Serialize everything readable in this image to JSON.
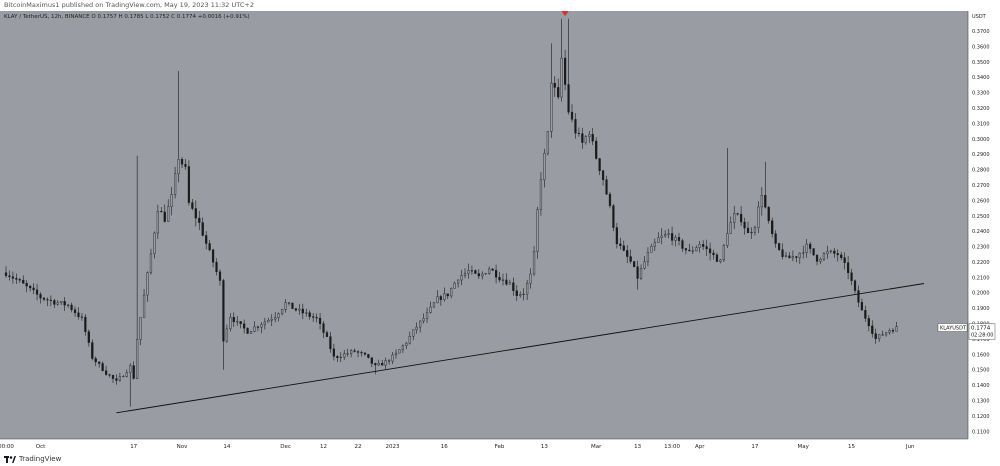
{
  "header": {
    "published": "BitcoinMaximus1 published on TradingView.com, May 19, 2023 11:32 UTC+2"
  },
  "legend": {
    "text": "KLAY / TetherUS, 12h, BINANCE  O 0.1757  H 0.1785  L 0.1752  C 0.1774  +0.0016 (+0.91%)"
  },
  "footer": {
    "brand": "TradingView"
  },
  "colors": {
    "background": "#9a9ca3",
    "candle": "#1a1a1a",
    "trendline": "#111111",
    "marker": "#d32f2f",
    "price_label_bg": "#ffffff"
  },
  "chart_data": {
    "type": "candlestick",
    "symbol": "KLAYUSDT",
    "timeframe": "12h",
    "exchange": "BINANCE",
    "ylabel": "USDT",
    "ylim": [
      0.105,
      0.383
    ],
    "y_ticks": [
      "0.1100",
      "0.1200",
      "0.1300",
      "0.1400",
      "0.1500",
      "0.1600",
      "0.1700",
      "0.1800",
      "0.1900",
      "0.2000",
      "0.2100",
      "0.2200",
      "0.2300",
      "0.2400",
      "0.2500",
      "0.2600",
      "0.2700",
      "0.2800",
      "0.2900",
      "0.3000",
      "0.3100",
      "0.3200",
      "0.3300",
      "0.3400",
      "0.3500",
      "0.3600",
      "0.3700"
    ],
    "x_ticks": [
      {
        "label": "00:00",
        "t": 0
      },
      {
        "label": "Oct",
        "t": 10
      },
      {
        "label": "17",
        "t": 37
      },
      {
        "label": "Nov",
        "t": 51
      },
      {
        "label": "14",
        "t": 64
      },
      {
        "label": "Dec",
        "t": 81
      },
      {
        "label": "12",
        "t": 92
      },
      {
        "label": "22",
        "t": 102
      },
      {
        "label": "2023",
        "t": 112
      },
      {
        "label": "16",
        "t": 127
      },
      {
        "label": "Feb",
        "t": 143
      },
      {
        "label": "13",
        "t": 156
      },
      {
        "label": "Mar",
        "t": 171
      },
      {
        "label": "13",
        "t": 183
      },
      {
        "label": "13:00",
        "t": 193
      },
      {
        "label": "Apr",
        "t": 201
      },
      {
        "label": "17",
        "t": 217
      },
      {
        "label": "May",
        "t": 231
      },
      {
        "label": "15",
        "t": 245
      },
      {
        "label": "Jun",
        "t": 262
      }
    ],
    "t_max": 277,
    "price_path": [
      [
        0,
        0.213
      ],
      [
        4,
        0.207
      ],
      [
        10,
        0.197
      ],
      [
        14,
        0.194
      ],
      [
        18,
        0.192
      ],
      [
        22,
        0.183
      ],
      [
        25,
        0.158
      ],
      [
        29,
        0.148
      ],
      [
        32,
        0.142
      ],
      [
        34,
        0.147
      ],
      [
        36,
        0.152
      ],
      [
        37,
        0.145
      ],
      [
        38,
        0.17
      ],
      [
        40,
        0.198
      ],
      [
        42,
        0.225
      ],
      [
        44,
        0.255
      ],
      [
        46,
        0.248
      ],
      [
        48,
        0.262
      ],
      [
        50,
        0.288
      ],
      [
        52,
        0.28
      ],
      [
        53,
        0.258
      ],
      [
        56,
        0.245
      ],
      [
        58,
        0.232
      ],
      [
        60,
        0.22
      ],
      [
        62,
        0.207
      ],
      [
        63,
        0.17
      ],
      [
        65,
        0.185
      ],
      [
        67,
        0.18
      ],
      [
        70,
        0.175
      ],
      [
        74,
        0.18
      ],
      [
        78,
        0.185
      ],
      [
        81,
        0.193
      ],
      [
        84,
        0.189
      ],
      [
        87,
        0.186
      ],
      [
        90,
        0.183
      ],
      [
        93,
        0.17
      ],
      [
        95,
        0.158
      ],
      [
        98,
        0.16
      ],
      [
        101,
        0.162
      ],
      [
        104,
        0.159
      ],
      [
        107,
        0.152
      ],
      [
        110,
        0.155
      ],
      [
        113,
        0.16
      ],
      [
        116,
        0.168
      ],
      [
        119,
        0.178
      ],
      [
        122,
        0.186
      ],
      [
        125,
        0.196
      ],
      [
        128,
        0.199
      ],
      [
        131,
        0.21
      ],
      [
        134,
        0.214
      ],
      [
        137,
        0.21
      ],
      [
        140,
        0.216
      ],
      [
        143,
        0.21
      ],
      [
        146,
        0.206
      ],
      [
        148,
        0.199
      ],
      [
        150,
        0.2
      ],
      [
        152,
        0.211
      ],
      [
        153,
        0.225
      ],
      [
        154,
        0.253
      ],
      [
        155,
        0.275
      ],
      [
        157,
        0.303
      ],
      [
        158,
        0.338
      ],
      [
        160,
        0.325
      ],
      [
        161,
        0.352
      ],
      [
        163,
        0.318
      ],
      [
        165,
        0.305
      ],
      [
        167,
        0.297
      ],
      [
        169,
        0.305
      ],
      [
        171,
        0.288
      ],
      [
        173,
        0.274
      ],
      [
        175,
        0.255
      ],
      [
        177,
        0.233
      ],
      [
        179,
        0.226
      ],
      [
        181,
        0.22
      ],
      [
        183,
        0.21
      ],
      [
        186,
        0.225
      ],
      [
        189,
        0.235
      ],
      [
        192,
        0.238
      ],
      [
        195,
        0.232
      ],
      [
        198,
        0.226
      ],
      [
        201,
        0.232
      ],
      [
        204,
        0.226
      ],
      [
        207,
        0.22
      ],
      [
        209,
        0.24
      ],
      [
        211,
        0.25
      ],
      [
        213,
        0.248
      ],
      [
        215,
        0.238
      ],
      [
        217,
        0.244
      ],
      [
        219,
        0.265
      ],
      [
        221,
        0.245
      ],
      [
        223,
        0.23
      ],
      [
        226,
        0.222
      ],
      [
        229,
        0.224
      ],
      [
        232,
        0.23
      ],
      [
        235,
        0.222
      ],
      [
        238,
        0.226
      ],
      [
        241,
        0.225
      ],
      [
        244,
        0.214
      ],
      [
        246,
        0.2
      ],
      [
        248,
        0.188
      ],
      [
        250,
        0.18
      ],
      [
        252,
        0.17
      ],
      [
        254,
        0.173
      ],
      [
        256,
        0.176
      ],
      [
        258,
        0.177
      ]
    ],
    "wick_spikes": [
      {
        "t": 38,
        "h": 0.289
      },
      {
        "t": 50,
        "h": 0.344
      },
      {
        "t": 158,
        "h": 0.362
      },
      {
        "t": 161,
        "h": 0.378
      },
      {
        "t": 163,
        "h": 0.378
      },
      {
        "t": 209,
        "h": 0.294
      },
      {
        "t": 220,
        "h": 0.285
      },
      {
        "t": 36,
        "l": 0.126
      },
      {
        "t": 63,
        "l": 0.15
      },
      {
        "t": 107,
        "l": 0.147
      },
      {
        "t": 183,
        "l": 0.202
      },
      {
        "t": 253,
        "l": 0.168
      }
    ],
    "trendline": [
      {
        "t": 32,
        "y": 0.122
      },
      {
        "t": 266,
        "y": 0.206
      }
    ],
    "peak_marker": {
      "t": 162,
      "y": 0.381
    },
    "last_price": {
      "symbol_label": "KLAYUSDT",
      "price": "0.1774",
      "countdown": "02:28:00",
      "value": 0.1774
    }
  }
}
